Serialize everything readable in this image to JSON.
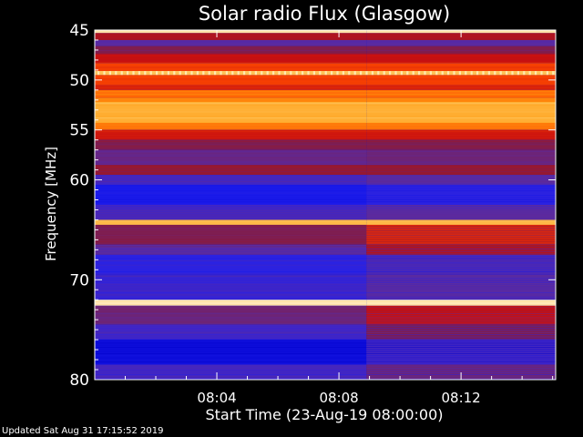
{
  "chart_data": {
    "type": "heatmap",
    "title": "Solar radio Flux (Glasgow)",
    "xlabel": "Start Time (23-Aug-19 08:00:00)",
    "ylabel": "Frequency [MHz]",
    "y_ticks": [
      45,
      50,
      55,
      60,
      70,
      80
    ],
    "ylim": [
      45,
      80
    ],
    "y_inverted": true,
    "x_ticks": [
      {
        "label": "08:04",
        "minutes": 4
      },
      {
        "label": "08:08",
        "minutes": 8
      },
      {
        "label": "08:12",
        "minutes": 12
      }
    ],
    "xlim_minutes": [
      0,
      15.1
    ],
    "step_change_minutes": 8.9,
    "colormap": [
      "#0000cc",
      "#2020f0",
      "#5a2aa0",
      "#8a1a3a",
      "#c81010",
      "#ff4a00",
      "#ff9a10",
      "#ffd070",
      "#fff0d0"
    ],
    "bands": [
      {
        "from": 45.0,
        "to": 45.3,
        "level": 0.95,
        "after": 0.95
      },
      {
        "from": 45.3,
        "to": 46.0,
        "level": 0.45,
        "after": 0.45
      },
      {
        "from": 46.0,
        "to": 46.6,
        "level": 0.25,
        "after": 0.25
      },
      {
        "from": 46.6,
        "to": 47.4,
        "level": 0.35,
        "after": 0.35
      },
      {
        "from": 47.4,
        "to": 48.3,
        "level": 0.5,
        "after": 0.5
      },
      {
        "from": 48.3,
        "to": 49.1,
        "level": 0.6,
        "after": 0.6
      },
      {
        "from": 49.1,
        "to": 49.5,
        "level": 0.85,
        "after": 0.85
      },
      {
        "from": 49.5,
        "to": 50.5,
        "level": 0.6,
        "after": 0.6
      },
      {
        "from": 50.5,
        "to": 51.0,
        "level": 0.55,
        "after": 0.55
      },
      {
        "from": 51.0,
        "to": 51.8,
        "level": 0.68,
        "after": 0.68
      },
      {
        "from": 51.8,
        "to": 52.2,
        "level": 0.72,
        "after": 0.72
      },
      {
        "from": 52.2,
        "to": 54.3,
        "level": 0.8,
        "after": 0.8
      },
      {
        "from": 54.3,
        "to": 55.0,
        "level": 0.7,
        "after": 0.7
      },
      {
        "from": 55.0,
        "to": 56.0,
        "level": 0.52,
        "after": 0.52
      },
      {
        "from": 56.0,
        "to": 57.0,
        "level": 0.35,
        "after": 0.35
      },
      {
        "from": 57.0,
        "to": 58.5,
        "level": 0.28,
        "after": 0.3
      },
      {
        "from": 58.5,
        "to": 59.5,
        "level": 0.4,
        "after": 0.4
      },
      {
        "from": 59.5,
        "to": 60.5,
        "level": 0.2,
        "after": 0.25
      },
      {
        "from": 60.5,
        "to": 62.5,
        "level": 0.1,
        "after": 0.15
      },
      {
        "from": 62.5,
        "to": 64.0,
        "level": 0.2,
        "after": 0.25
      },
      {
        "from": 64.0,
        "to": 64.5,
        "level": 0.82,
        "after": 0.82
      },
      {
        "from": 64.5,
        "to": 66.5,
        "level": 0.35,
        "after": 0.55
      },
      {
        "from": 66.5,
        "to": 67.5,
        "level": 0.25,
        "after": 0.45
      },
      {
        "from": 67.5,
        "to": 69.5,
        "level": 0.15,
        "after": 0.22
      },
      {
        "from": 69.5,
        "to": 72.0,
        "level": 0.18,
        "after": 0.25
      },
      {
        "from": 72.0,
        "to": 72.6,
        "level": 0.97,
        "after": 0.97
      },
      {
        "from": 72.6,
        "to": 74.5,
        "level": 0.3,
        "after": 0.5
      },
      {
        "from": 74.5,
        "to": 76.0,
        "level": 0.2,
        "after": 0.35
      },
      {
        "from": 76.0,
        "to": 78.5,
        "level": 0.05,
        "after": 0.2
      },
      {
        "from": 78.5,
        "to": 80.0,
        "level": 0.2,
        "after": 0.3
      }
    ]
  },
  "footer": {
    "updated": "Updated Sat Aug 31 17:15:52 2019"
  }
}
